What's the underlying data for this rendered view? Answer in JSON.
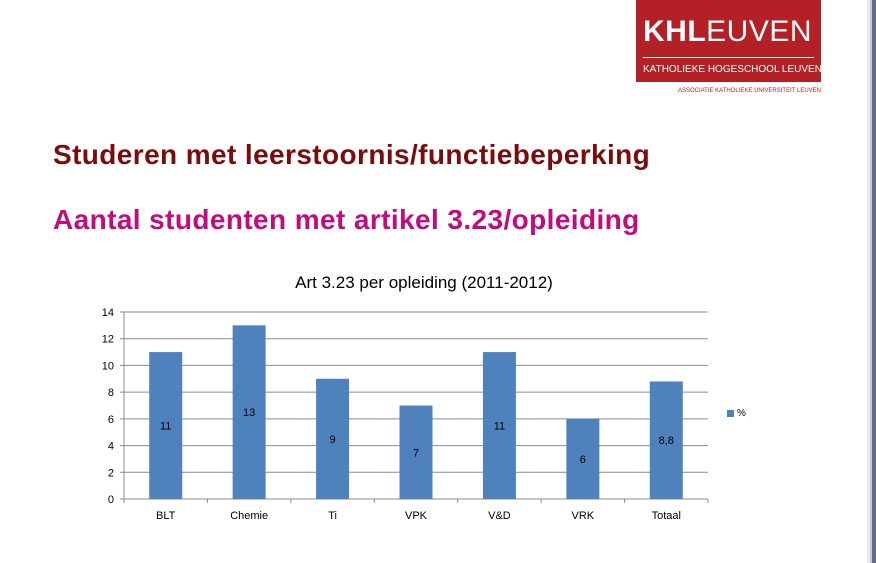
{
  "logo": {
    "brand_bold": "KHL",
    "brand_rest": "EUVEN",
    "subtitle": "KATHOLIEKE HOGESCHOOL LEUVEN",
    "association": "ASSOCIATIE KATHOLIEKE UNIVERSITEIT LEUVEN"
  },
  "slide": {
    "title": "Studeren met leerstoornis/functiebeperking",
    "subtitle": "Aantal studenten met artikel 3.23/opleiding"
  },
  "colors": {
    "bar": "#4f81bd",
    "title": "#7a0c0c",
    "subtitle": "#c20b7e",
    "logo_bg": "#b32025"
  },
  "chart_data": {
    "type": "bar",
    "title": "Art 3.23 per opleiding (2011-2012)",
    "categories": [
      "BLT",
      "Chemie",
      "Ti",
      "VPK",
      "V&D",
      "VRK",
      "Totaal"
    ],
    "series": [
      {
        "name": "%",
        "values": [
          11,
          13,
          9,
          7,
          11,
          6,
          8.8
        ],
        "labels": [
          "11",
          "13",
          "9",
          "7",
          "11",
          "6",
          "8,8"
        ]
      }
    ],
    "xlabel": "",
    "ylabel": "",
    "ylim": [
      0,
      14
    ],
    "yticks": [
      0,
      2,
      4,
      6,
      8,
      10,
      12,
      14
    ],
    "grid": true,
    "legend": "right"
  }
}
